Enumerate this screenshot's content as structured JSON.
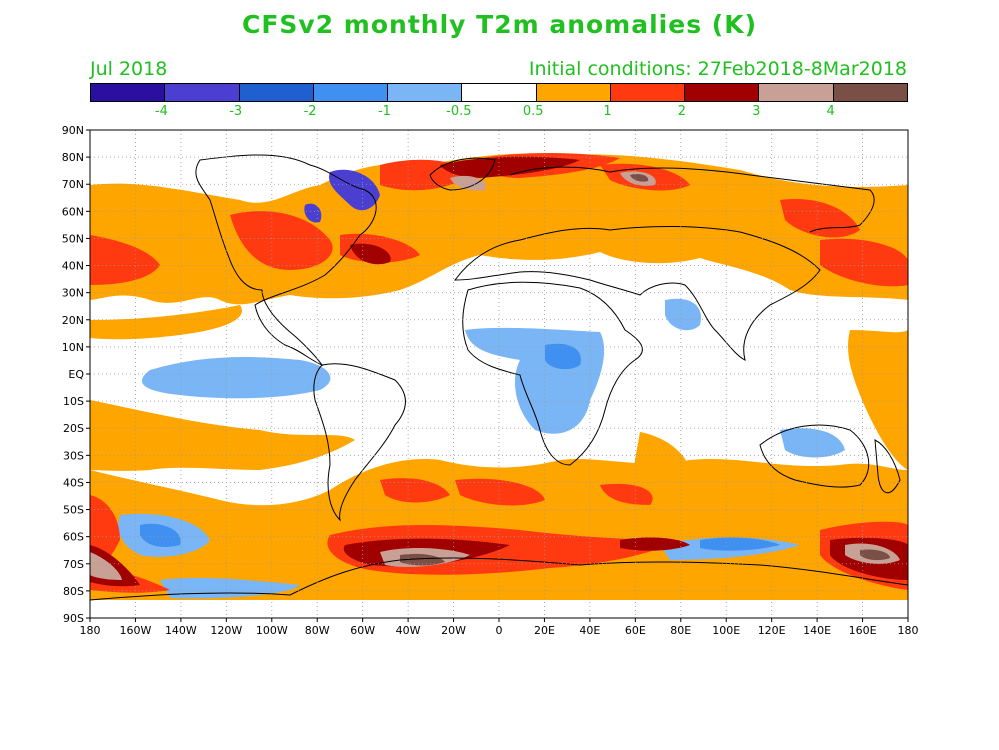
{
  "title": "CFSv2 monthly T2m anomalies (K)",
  "valid_month": "Jul 2018",
  "initial_conditions": "Initial conditions: 27Feb2018-8Mar2018",
  "colors": {
    "title_text": "#20c020",
    "land_outline": "#000000"
  },
  "colorbar": {
    "colors": [
      "#2a0fa0",
      "#4a3fd0",
      "#1f5fd0",
      "#3f90f0",
      "#7ab6f5",
      "#ffffff",
      "#ffa500",
      "#ff3a10",
      "#a00000",
      "#c8a096",
      "#7a5046"
    ],
    "labels": [
      "-4",
      "-3",
      "-2",
      "-1",
      "-0.5",
      "0.5",
      "1",
      "2",
      "3",
      "4"
    ]
  },
  "axes": {
    "lat_labels": [
      "90N",
      "80N",
      "70N",
      "60N",
      "50N",
      "40N",
      "30N",
      "20N",
      "10N",
      "EQ",
      "10S",
      "20S",
      "30S",
      "40S",
      "50S",
      "60S",
      "70S",
      "80S",
      "90S"
    ],
    "lon_labels": [
      "180",
      "160W",
      "140W",
      "120W",
      "100W",
      "80W",
      "60W",
      "40W",
      "20W",
      "0",
      "20E",
      "40E",
      "60E",
      "80E",
      "100E",
      "120E",
      "140E",
      "160E",
      "180"
    ]
  }
}
